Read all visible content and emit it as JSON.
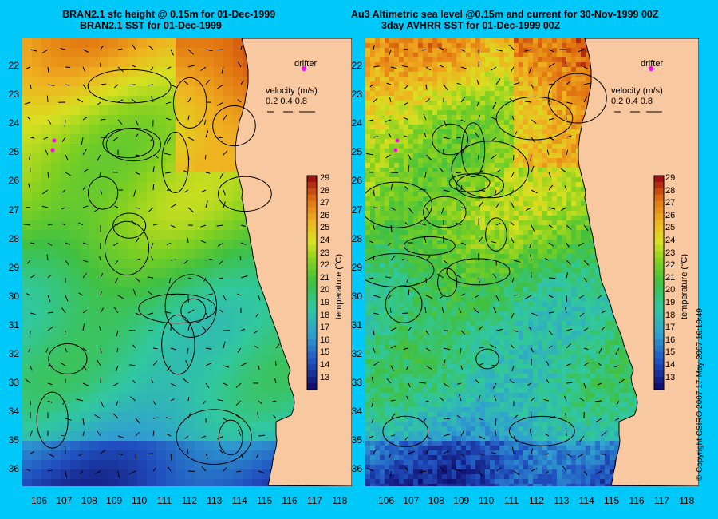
{
  "left_panel": {
    "title_line1": "BRAN2.1 sfc height @ 0.15m for 01-Dec-1999",
    "title_line2": "BRAN2.1 SST for 01-Dec-1999",
    "drifter_label": "drifter",
    "velocity_label": "velocity (m/s)",
    "velocity_scale": "0.2  0.4  0.8",
    "colorbar_label": "temperature (°C)"
  },
  "right_panel": {
    "title_line1": "Au3 Altimetric sea level  @0.15m and current for 30-Nov-1999 00Z",
    "title_line2": "3day AVHRR SST for 01-Dec-1999 00Z",
    "drifter_label": "drifter",
    "velocity_label": "velocity (m/s)",
    "velocity_scale": "0.2  0.4  0.8",
    "colorbar_label": "temperature (°C)"
  },
  "axes": {
    "lat_ticks": [
      "22",
      "23",
      "24",
      "25",
      "26",
      "27",
      "28",
      "29",
      "30",
      "31",
      "32",
      "33",
      "34",
      "35",
      "36"
    ],
    "lon_ticks": [
      "106",
      "107",
      "108",
      "109",
      "110",
      "111",
      "112",
      "113",
      "114",
      "115",
      "116",
      "117",
      "118"
    ]
  },
  "colorbar_ticks": [
    "29",
    "28",
    "27",
    "26",
    "25",
    "24",
    "23",
    "22",
    "21",
    "20",
    "19",
    "18",
    "17",
    "16",
    "15",
    "14",
    "13"
  ],
  "credit": "© Copyright CSIRO 2007   17-May-2007 16:19:49",
  "colors": {
    "background": "#00c8f8",
    "land": "#f8c8a0",
    "drifter": "#ff00ff"
  }
}
